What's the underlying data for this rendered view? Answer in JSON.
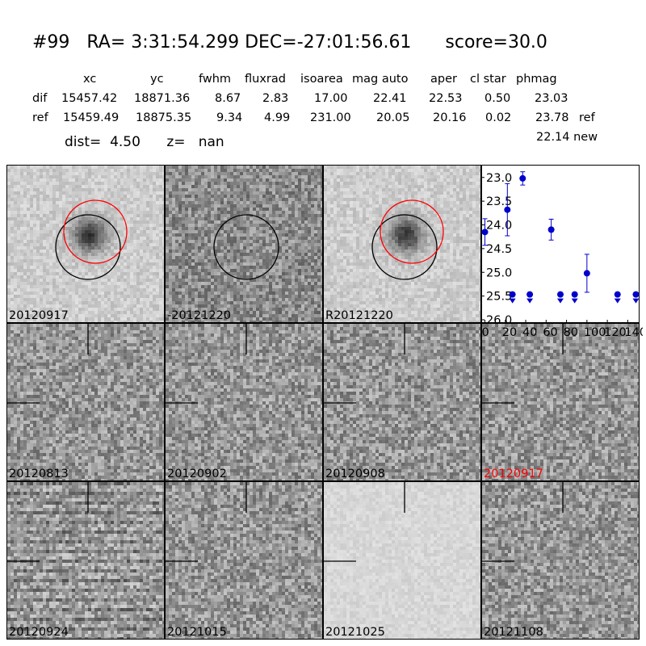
{
  "header": {
    "title": "#99   RA= 3:31:54.299 DEC=-27:01:56.61      score=30.0",
    "columns": [
      "xc",
      "yc",
      "fwhm",
      "fluxrad",
      "isoarea",
      "mag auto",
      "aper",
      "cl star",
      "phmag"
    ],
    "rows": [
      {
        "label": "dif",
        "values": [
          "15457.42",
          "18871.36",
          "8.67",
          "2.83",
          "17.00",
          "22.41",
          "22.53",
          "0.50",
          "23.03"
        ],
        "suffix": ""
      },
      {
        "label": "ref",
        "values": [
          "15459.49",
          "18875.35",
          "9.34",
          "4.99",
          "231.00",
          "20.05",
          "20.16",
          "0.02",
          "23.78"
        ],
        "suffix": "ref"
      }
    ],
    "new_mag": "22.14 new",
    "dist_line": "dist=  4.50      z=   nan"
  },
  "panels": [
    {
      "label": "20120917",
      "style": "light",
      "circles": "both",
      "blob": true
    },
    {
      "label": "-20121220",
      "style": "dark",
      "circles": "black",
      "blob": false
    },
    {
      "label": "R20121220",
      "style": "light",
      "circles": "both",
      "blob": true
    },
    {
      "label": "20120813",
      "style": "mid",
      "crosshair": true
    },
    {
      "label": "20120902",
      "style": "mid",
      "crosshair": true
    },
    {
      "label": "20120908",
      "style": "mid",
      "crosshair": true
    },
    {
      "label": "20120917",
      "style": "mid",
      "crosshair": true,
      "highlight": true
    },
    {
      "label": "20120924",
      "style": "striped",
      "crosshair": true
    },
    {
      "label": "20121015",
      "style": "mid",
      "crosshair": true
    },
    {
      "label": "20121025",
      "style": "pale",
      "crosshair": true
    },
    {
      "label": "20121108",
      "style": "mid",
      "crosshair": true
    }
  ],
  "colors": {
    "highlight_label": "#ff0000",
    "marker": "#0000cc",
    "circle_red": "#ff0000",
    "circle_black": "#000000"
  },
  "chart_data": {
    "type": "scatter",
    "ylim": [
      26.0,
      22.8
    ],
    "xlim": [
      -2,
      150
    ],
    "yticks": [
      "23.0",
      "23.5",
      "24.0",
      "24.5",
      "25.0",
      "25.5",
      "26.0"
    ],
    "xticks": [
      "0",
      "20",
      "40",
      "60",
      "80",
      "100",
      "120",
      "140"
    ],
    "points": [
      {
        "x": 0,
        "y": 24.15,
        "err": 0.28
      },
      {
        "x": 22,
        "y": 23.68,
        "err": 0.55
      },
      {
        "x": 37,
        "y": 23.02,
        "err": 0.14
      },
      {
        "x": 65,
        "y": 24.1,
        "err": 0.22
      },
      {
        "x": 100,
        "y": 25.02,
        "err": 0.4
      }
    ],
    "upper_limits": [
      {
        "x": 27,
        "y": 25.5
      },
      {
        "x": 44,
        "y": 25.5
      },
      {
        "x": 74,
        "y": 25.5
      },
      {
        "x": 88,
        "y": 25.5
      },
      {
        "x": 130,
        "y": 25.5
      },
      {
        "x": 148,
        "y": 25.5
      }
    ]
  }
}
